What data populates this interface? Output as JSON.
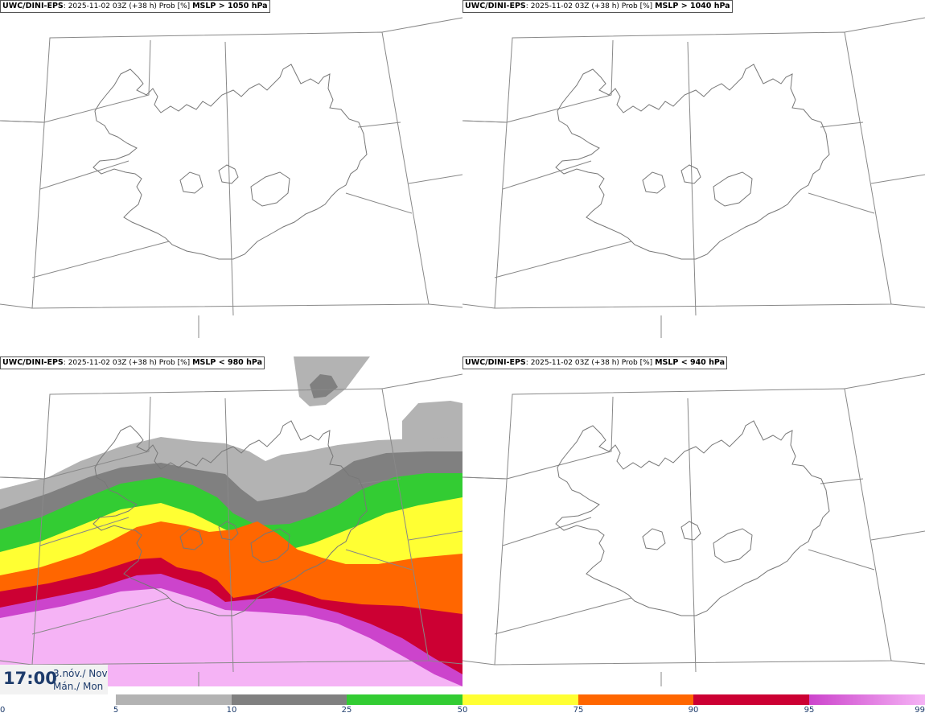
{
  "panels": [
    {
      "model": "UWC/DINI-EPS",
      "run": "2025-11-02 03Z (+38 h) Prob [%]",
      "threshold": "MSLP > 1050 hPa"
    },
    {
      "model": "UWC/DINI-EPS",
      "run": "2025-11-02 03Z (+38 h) Prob [%]",
      "threshold": "MSLP > 1040 hPa"
    },
    {
      "model": "UWC/DINI-EPS",
      "run": "2025-11-02 03Z (+38 h) Prob [%]",
      "threshold": "MSLP < 980 hPa"
    },
    {
      "model": "UWC/DINI-EPS",
      "run": "2025-11-02 03Z (+38 h) Prob [%]",
      "threshold": "MSLP < 940 hPa"
    }
  ],
  "valid_time": {
    "time": "17:00",
    "date_line1": "3.nóv./ Nov",
    "date_line2": "Mán./ Mon"
  },
  "legend": {
    "ticks": [
      "0",
      "5",
      "10",
      "25",
      "50",
      "75",
      "90",
      "95",
      "99"
    ],
    "colors": [
      "#ffffff",
      "#b3b3b3",
      "#808080",
      "#33cc33",
      "#ffff33",
      "#ff6600",
      "#cc0033",
      "#cc44cc",
      "#f5b3f5"
    ]
  }
}
